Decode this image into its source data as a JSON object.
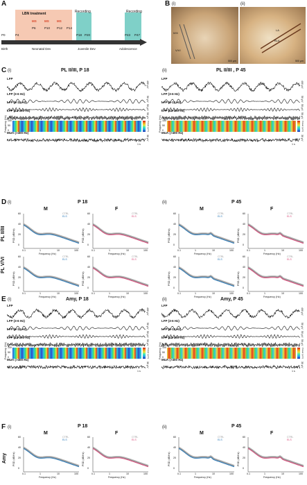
{
  "panels": {
    "A": "A",
    "B": "B",
    "C": "C",
    "D": "D",
    "E": "E",
    "F": "F",
    "i": "(i)",
    "ii": "(ii)"
  },
  "timeline": {
    "treatment": "LBN treatment",
    "recording1": "Recording",
    "recording2": "Recording",
    "ms": [
      "MS",
      "MS",
      "MS",
      "MS"
    ],
    "ms_days": [
      "P6",
      "P10",
      "P12",
      "P14"
    ],
    "days": {
      "p0": "P0",
      "p4": "P4",
      "p18": "P18",
      "p20": "P20",
      "p43": "P43",
      "p47": "P47"
    },
    "stages": [
      "Birth",
      "Neonatal Dev",
      "Juvenile Dev",
      "Adolescence"
    ],
    "colors": {
      "treatment": "#f6c9b3",
      "recording": "#7fd0c8",
      "ms": "#d9482b"
    }
  },
  "histology": {
    "scale1": "500 μm",
    "scale2": "500 μm",
    "labels": [
      "II/III",
      "V/VI",
      "LA",
      "BLA"
    ]
  },
  "C": {
    "title_i": "PL II/III, P 18",
    "title_ii": "PL II/III , P 45",
    "rows": [
      "LFP",
      "LFP (3-6 Hz)",
      "LFP (6-12 Hz)",
      "LFP (12-100 Hz)",
      "MUA (>400 Hz)"
    ],
    "scales": [
      "400 μV",
      "50 μV",
      "50 μV",
      "50 μV",
      "30 μV"
    ],
    "freq_label": "Frequency (Hz)",
    "freq_ticks": [
      "100",
      "50",
      "0"
    ],
    "power_label": "Power (μV²)",
    "time_scale": "1 s"
  },
  "D": {
    "title_i": "P 18",
    "title_ii": "P 45",
    "M": "M",
    "F": "F",
    "row1": "PL II/III",
    "row2": "PL V/VI",
    "ylabel": "PSD (dB/Hz)",
    "xlabel": "Frequency (Hz)",
    "yticks": [
      "60",
      "40",
      "20",
      "0"
    ],
    "xticks": [
      "0.1",
      "1",
      "10",
      "100"
    ],
    "legend": [
      "CTRL",
      "ELS"
    ],
    "colors": {
      "ctrl": "#999999",
      "els_m": "#2b7bba",
      "els_f": "#d94b7b"
    }
  },
  "E": {
    "title_i": "Amy, P 18",
    "title_ii": "Amy, P 45",
    "rows": [
      "LFP",
      "LFP (3-6 Hz)",
      "LFP (6-12 Hz)",
      "LFP (12-100 Hz)",
      "MUA (>400 Hz)"
    ],
    "scales": [
      "400 μV",
      "50 μV",
      "50 μV",
      "50 μV",
      "30 μV"
    ],
    "freq_label": "Frequency (Hz)",
    "freq_ticks": [
      "100",
      "50",
      "0"
    ],
    "power_label": "Power (μV²)",
    "time_scale": "1 s"
  },
  "F": {
    "title_i": "P 18",
    "title_ii": "P 45",
    "M": "M",
    "F": "F",
    "row1": "Amy",
    "ylabel": "PSD (dB/Hz)",
    "xlabel": "Frequency (Hz)",
    "yticks": [
      "60",
      "40",
      "20",
      "0"
    ],
    "xticks": [
      "0.1",
      "1",
      "10",
      "100"
    ],
    "legend": [
      "CTRL",
      "ELS"
    ]
  }
}
